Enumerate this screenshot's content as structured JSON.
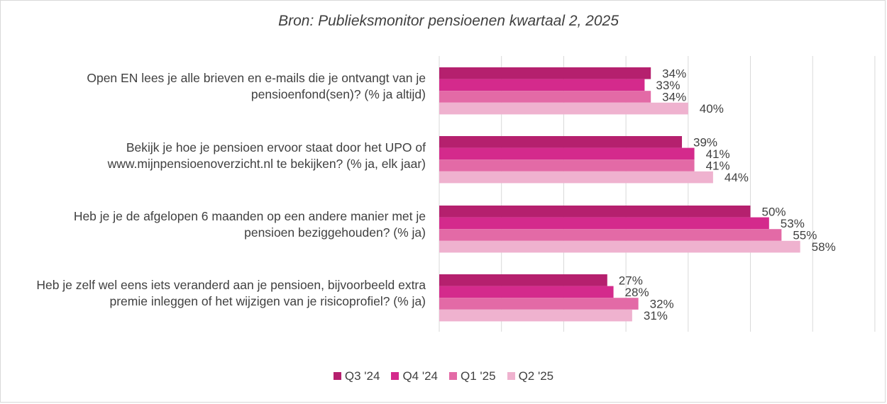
{
  "chart_data": {
    "type": "bar",
    "orientation": "horizontal",
    "title": "Bron: Publieksmonitor pensioenen kwartaal 2, 2025",
    "categories": [
      [
        "Open EN lees je alle brieven en e-mails die je ontvangt van je",
        "pensioenfond(sen)? (% ja altijd)"
      ],
      [
        "Bekijk je hoe je pensioen ervoor staat door het UPO of",
        "www.mijnpensioenoverzicht.nl te bekijken? (% ja, elk jaar)"
      ],
      [
        "Heb je je de afgelopen 6 maanden op een andere manier met je",
        "pensioen beziggehouden? (% ja)"
      ],
      [
        "Heb je zelf wel eens iets veranderd aan je pensioen, bijvoorbeeld extra",
        "premie inleggen of het wijzigen van je risicoprofiel? (% ja)"
      ]
    ],
    "series": [
      {
        "name": "Q3 '24",
        "color": "#b5206e",
        "values": [
          34,
          39,
          50,
          27
        ],
        "labels": [
          "34%",
          "39%",
          "50%",
          "27%"
        ]
      },
      {
        "name": "Q4 '24",
        "color": "#d42a8c",
        "values": [
          33,
          41,
          53,
          28
        ],
        "labels": [
          "33%",
          "41%",
          "53%",
          "28%"
        ]
      },
      {
        "name": "Q1 '25",
        "color": "#e36aa6",
        "values": [
          34,
          41,
          55,
          32
        ],
        "labels": [
          "34%",
          "41%",
          "55%",
          "32%"
        ]
      },
      {
        "name": "Q2 '25",
        "color": "#efb2cf",
        "values": [
          40,
          44,
          58,
          31
        ],
        "labels": [
          "40%",
          "44%",
          "58%",
          "31%"
        ]
      }
    ],
    "xlim": [
      0,
      70
    ],
    "grid": true,
    "legend_position": "bottom"
  }
}
